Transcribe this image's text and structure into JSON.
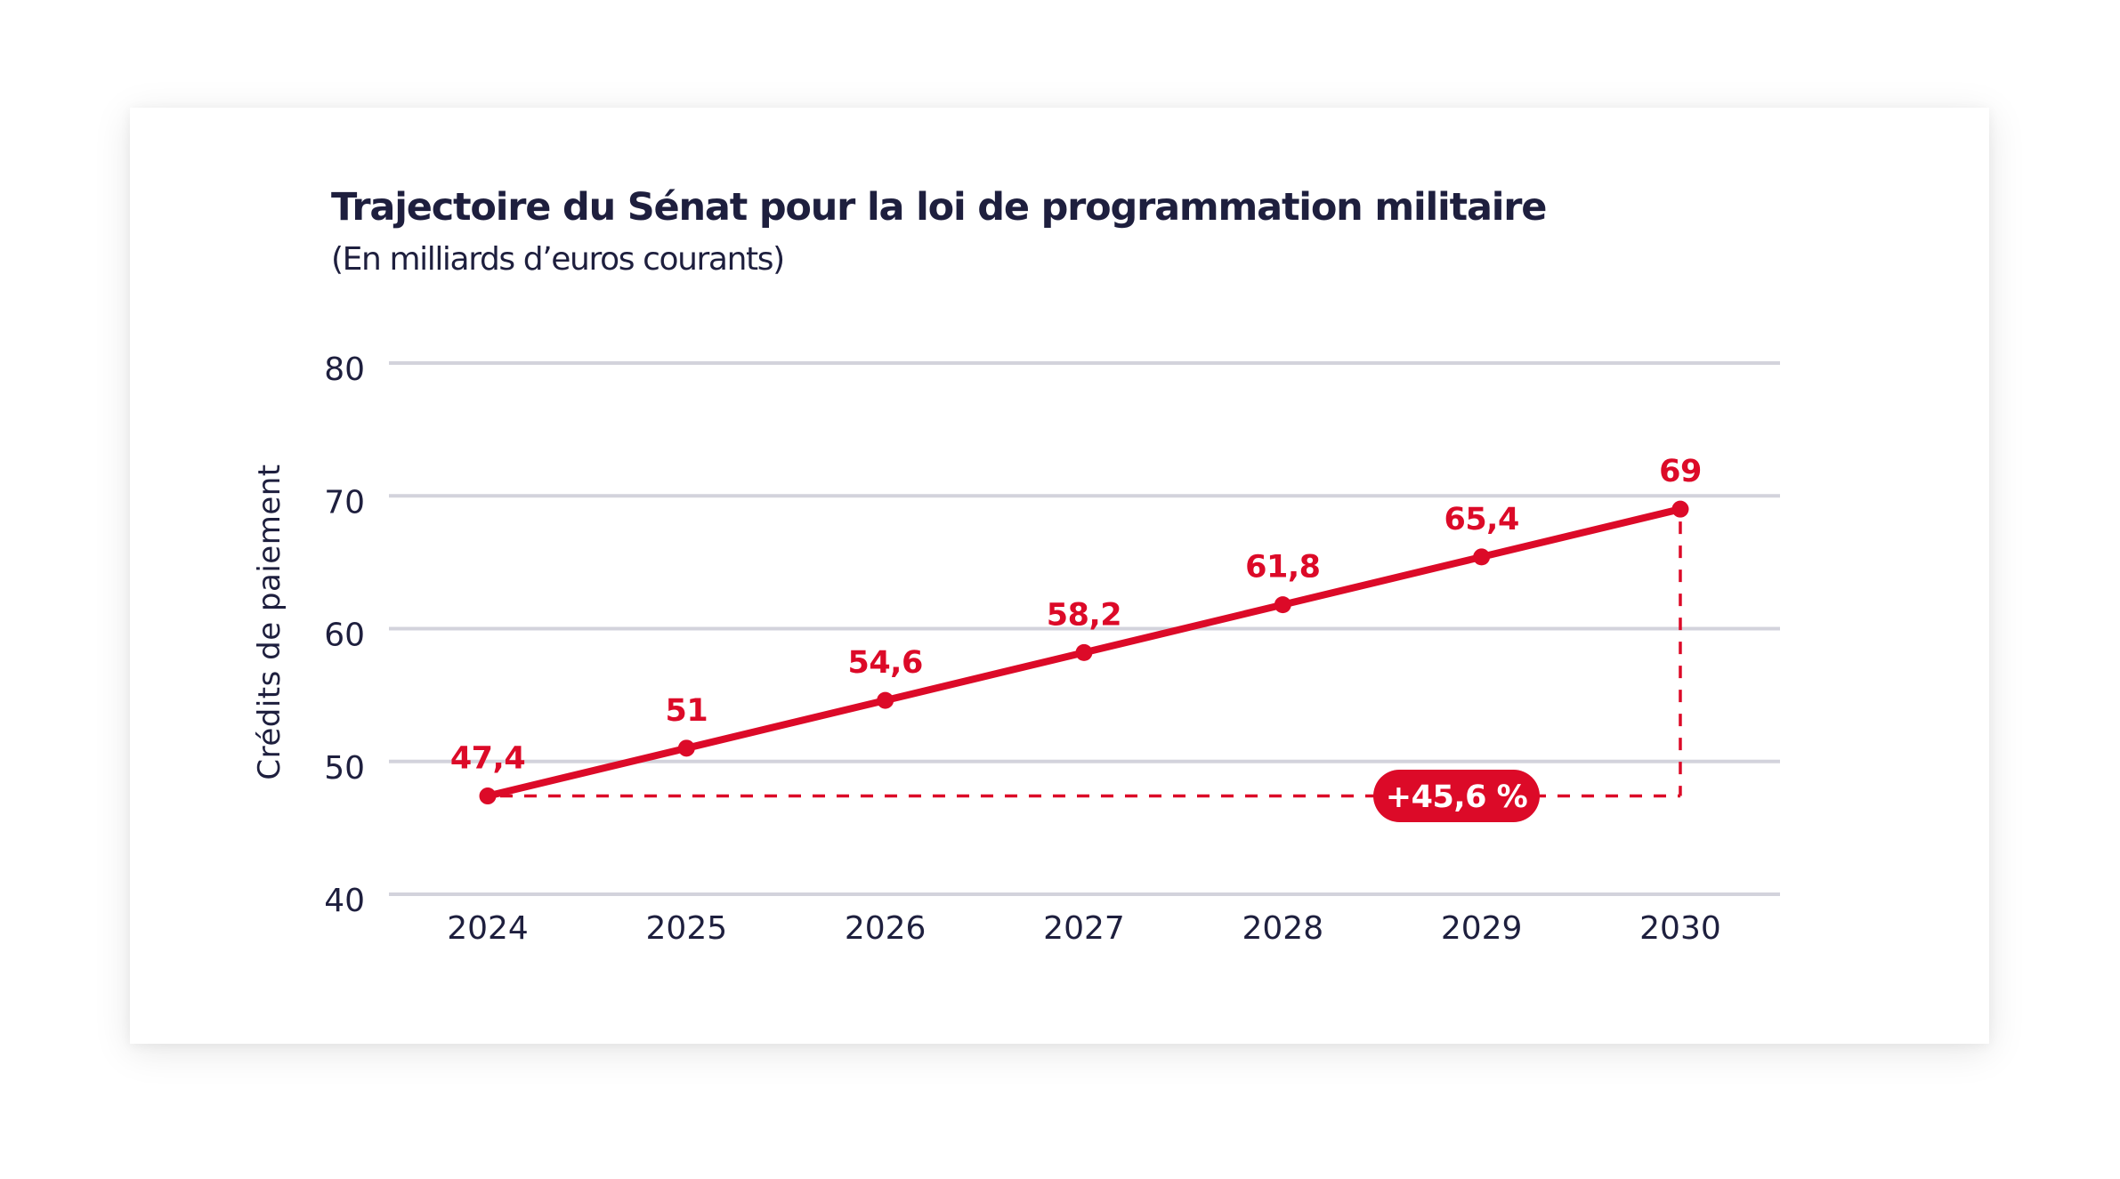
{
  "chart_data": {
    "type": "line",
    "title": "Trajectoire du Sénat pour la loi de programmation militaire",
    "subtitle": "(En milliards d’euros courants)",
    "xlabel": "",
    "ylabel": "Crédits de paiement",
    "categories": [
      "2024",
      "2025",
      "2026",
      "2027",
      "2028",
      "2029",
      "2030"
    ],
    "series": [
      {
        "name": "Crédits de paiement",
        "values": [
          47.4,
          51,
          54.6,
          58.2,
          61.8,
          65.4,
          69
        ],
        "labels": [
          "47,4",
          "51",
          "54,6",
          "58,2",
          "61,8",
          "65,4",
          "69"
        ],
        "color": "#dc0a28"
      }
    ],
    "ylim": [
      40,
      80
    ],
    "yticks": [
      40,
      50,
      60,
      70,
      80
    ],
    "ytick_labels": [
      "40",
      "50",
      "60",
      "70",
      "80"
    ],
    "grid": true,
    "legend": "none",
    "annotations": [
      {
        "type": "growth-bracket",
        "from_category": "2024",
        "to_category": "2030",
        "from_value": 47.4,
        "to_value": 69,
        "label": "+45,6 %"
      }
    ]
  },
  "colors": {
    "accent": "#dc0a28",
    "text": "#1e1f3e",
    "grid": "#d3d3dc"
  }
}
